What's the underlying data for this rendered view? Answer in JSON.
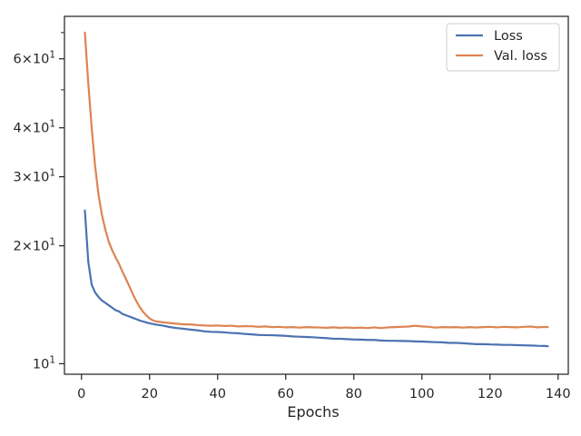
{
  "chart_data": {
    "type": "line",
    "xlabel": "Epochs",
    "ylabel": "",
    "xlim": [
      -5,
      143
    ],
    "ylim": [
      9.4,
      77
    ],
    "y_scale": "log",
    "grid": false,
    "legend_position": "top-right",
    "x_ticks": [
      0,
      20,
      40,
      60,
      80,
      100,
      120,
      140
    ],
    "y_major_ticks": [
      {
        "value": 10,
        "mantissa": "",
        "exponent": "1"
      },
      {
        "value": 20,
        "mantissa": "2",
        "exponent": "1"
      },
      {
        "value": 30,
        "mantissa": "3",
        "exponent": "1"
      },
      {
        "value": 40,
        "mantissa": "4",
        "exponent": "1"
      },
      {
        "value": 60,
        "mantissa": "6",
        "exponent": "1"
      }
    ],
    "y_minor_ticks": [
      50,
      70
    ],
    "series": [
      {
        "name": "Loss",
        "color": "#4c72b0",
        "points": [
          [
            1,
            24.6
          ],
          [
            2,
            18.2
          ],
          [
            3,
            15.9
          ],
          [
            4,
            15.2
          ],
          [
            5,
            14.8
          ],
          [
            6,
            14.5
          ],
          [
            7,
            14.3
          ],
          [
            8,
            14.1
          ],
          [
            9,
            13.9
          ],
          [
            10,
            13.7
          ],
          [
            11,
            13.6
          ],
          [
            12,
            13.4
          ],
          [
            13,
            13.3
          ],
          [
            14,
            13.2
          ],
          [
            15,
            13.1
          ],
          [
            16,
            13.0
          ],
          [
            17,
            12.9
          ],
          [
            18,
            12.82
          ],
          [
            19,
            12.75
          ],
          [
            20,
            12.68
          ],
          [
            22,
            12.58
          ],
          [
            24,
            12.5
          ],
          [
            26,
            12.4
          ],
          [
            28,
            12.33
          ],
          [
            30,
            12.28
          ],
          [
            32,
            12.22
          ],
          [
            34,
            12.17
          ],
          [
            36,
            12.1
          ],
          [
            38,
            12.06
          ],
          [
            40,
            12.05
          ],
          [
            42,
            12.02
          ],
          [
            44,
            11.98
          ],
          [
            46,
            11.96
          ],
          [
            48,
            11.91
          ],
          [
            50,
            11.88
          ],
          [
            52,
            11.84
          ],
          [
            54,
            11.83
          ],
          [
            56,
            11.82
          ],
          [
            58,
            11.8
          ],
          [
            60,
            11.78
          ],
          [
            62,
            11.74
          ],
          [
            64,
            11.72
          ],
          [
            66,
            11.7
          ],
          [
            68,
            11.68
          ],
          [
            70,
            11.65
          ],
          [
            72,
            11.62
          ],
          [
            74,
            11.58
          ],
          [
            76,
            11.58
          ],
          [
            78,
            11.55
          ],
          [
            80,
            11.53
          ],
          [
            82,
            11.52
          ],
          [
            84,
            11.5
          ],
          [
            86,
            11.5
          ],
          [
            88,
            11.46
          ],
          [
            90,
            11.44
          ],
          [
            92,
            11.44
          ],
          [
            94,
            11.43
          ],
          [
            96,
            11.42
          ],
          [
            98,
            11.4
          ],
          [
            100,
            11.39
          ],
          [
            102,
            11.37
          ],
          [
            104,
            11.35
          ],
          [
            106,
            11.34
          ],
          [
            108,
            11.3
          ],
          [
            110,
            11.3
          ],
          [
            112,
            11.28
          ],
          [
            114,
            11.25
          ],
          [
            116,
            11.22
          ],
          [
            118,
            11.22
          ],
          [
            120,
            11.2
          ],
          [
            122,
            11.19
          ],
          [
            124,
            11.17
          ],
          [
            126,
            11.17
          ],
          [
            128,
            11.15
          ],
          [
            130,
            11.14
          ],
          [
            132,
            11.13
          ],
          [
            134,
            11.11
          ],
          [
            136,
            11.1
          ],
          [
            137,
            11.08
          ]
        ]
      },
      {
        "name": "Val. loss",
        "color": "#dd8452",
        "points": [
          [
            1,
            70
          ],
          [
            2,
            52
          ],
          [
            3,
            40
          ],
          [
            4,
            32
          ],
          [
            5,
            27
          ],
          [
            6,
            24
          ],
          [
            7,
            22
          ],
          [
            8,
            20.5
          ],
          [
            9,
            19.5
          ],
          [
            10,
            18.7
          ],
          [
            11,
            18.0
          ],
          [
            12,
            17.2
          ],
          [
            13,
            16.5
          ],
          [
            14,
            15.8
          ],
          [
            15,
            15.1
          ],
          [
            16,
            14.5
          ],
          [
            17,
            14.0
          ],
          [
            18,
            13.6
          ],
          [
            19,
            13.3
          ],
          [
            20,
            13.05
          ],
          [
            21,
            12.9
          ],
          [
            22,
            12.82
          ],
          [
            24,
            12.75
          ],
          [
            26,
            12.7
          ],
          [
            28,
            12.65
          ],
          [
            30,
            12.6
          ],
          [
            32,
            12.6
          ],
          [
            34,
            12.55
          ],
          [
            36,
            12.52
          ],
          [
            38,
            12.5
          ],
          [
            40,
            12.52
          ],
          [
            42,
            12.48
          ],
          [
            44,
            12.5
          ],
          [
            46,
            12.45
          ],
          [
            48,
            12.47
          ],
          [
            50,
            12.46
          ],
          [
            52,
            12.42
          ],
          [
            54,
            12.45
          ],
          [
            56,
            12.4
          ],
          [
            58,
            12.42
          ],
          [
            60,
            12.38
          ],
          [
            62,
            12.4
          ],
          [
            64,
            12.36
          ],
          [
            66,
            12.4
          ],
          [
            68,
            12.38
          ],
          [
            70,
            12.37
          ],
          [
            72,
            12.35
          ],
          [
            74,
            12.38
          ],
          [
            76,
            12.35
          ],
          [
            78,
            12.37
          ],
          [
            80,
            12.34
          ],
          [
            82,
            12.36
          ],
          [
            84,
            12.33
          ],
          [
            86,
            12.38
          ],
          [
            88,
            12.33
          ],
          [
            90,
            12.38
          ],
          [
            92,
            12.4
          ],
          [
            94,
            12.42
          ],
          [
            96,
            12.44
          ],
          [
            98,
            12.5
          ],
          [
            100,
            12.45
          ],
          [
            102,
            12.42
          ],
          [
            104,
            12.36
          ],
          [
            106,
            12.4
          ],
          [
            108,
            12.38
          ],
          [
            110,
            12.4
          ],
          [
            112,
            12.36
          ],
          [
            114,
            12.4
          ],
          [
            116,
            12.37
          ],
          [
            118,
            12.4
          ],
          [
            120,
            12.42
          ],
          [
            122,
            12.38
          ],
          [
            124,
            12.42
          ],
          [
            126,
            12.4
          ],
          [
            128,
            12.38
          ],
          [
            130,
            12.42
          ],
          [
            132,
            12.44
          ],
          [
            134,
            12.38
          ],
          [
            136,
            12.41
          ],
          [
            137,
            12.4
          ]
        ]
      }
    ]
  }
}
